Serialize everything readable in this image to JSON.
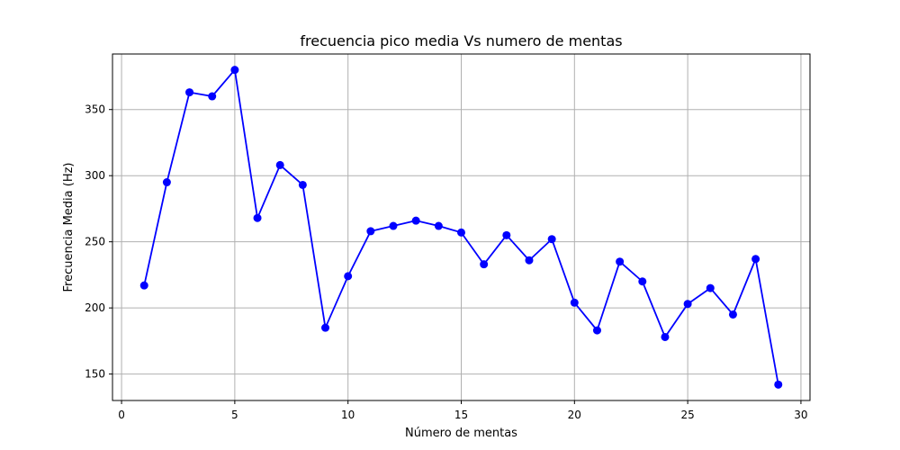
{
  "chart_data": {
    "type": "line",
    "title": "frecuencia pico media Vs numero de mentas",
    "xlabel": "Número de mentas",
    "ylabel": "Frecuencia Media (Hz)",
    "xlim": [
      -0.4,
      30.4
    ],
    "ylim": [
      130,
      392
    ],
    "xticks": [
      0,
      5,
      10,
      15,
      20,
      25,
      30
    ],
    "yticks": [
      150,
      200,
      250,
      300,
      350
    ],
    "grid": true,
    "series": [
      {
        "color": "#0000ff",
        "marker": "circle",
        "x": [
          1,
          2,
          3,
          4,
          5,
          6,
          7,
          8,
          9,
          10,
          11,
          12,
          13,
          14,
          15,
          16,
          17,
          18,
          19,
          20,
          21,
          22,
          23,
          24,
          25,
          26,
          27,
          28,
          29
        ],
        "y": [
          217,
          295,
          363,
          360,
          380,
          268,
          308,
          293,
          185,
          224,
          258,
          262,
          266,
          262,
          257,
          233,
          255,
          236,
          252,
          204,
          183,
          235,
          220,
          178,
          203,
          215,
          195,
          237,
          142
        ]
      }
    ]
  }
}
